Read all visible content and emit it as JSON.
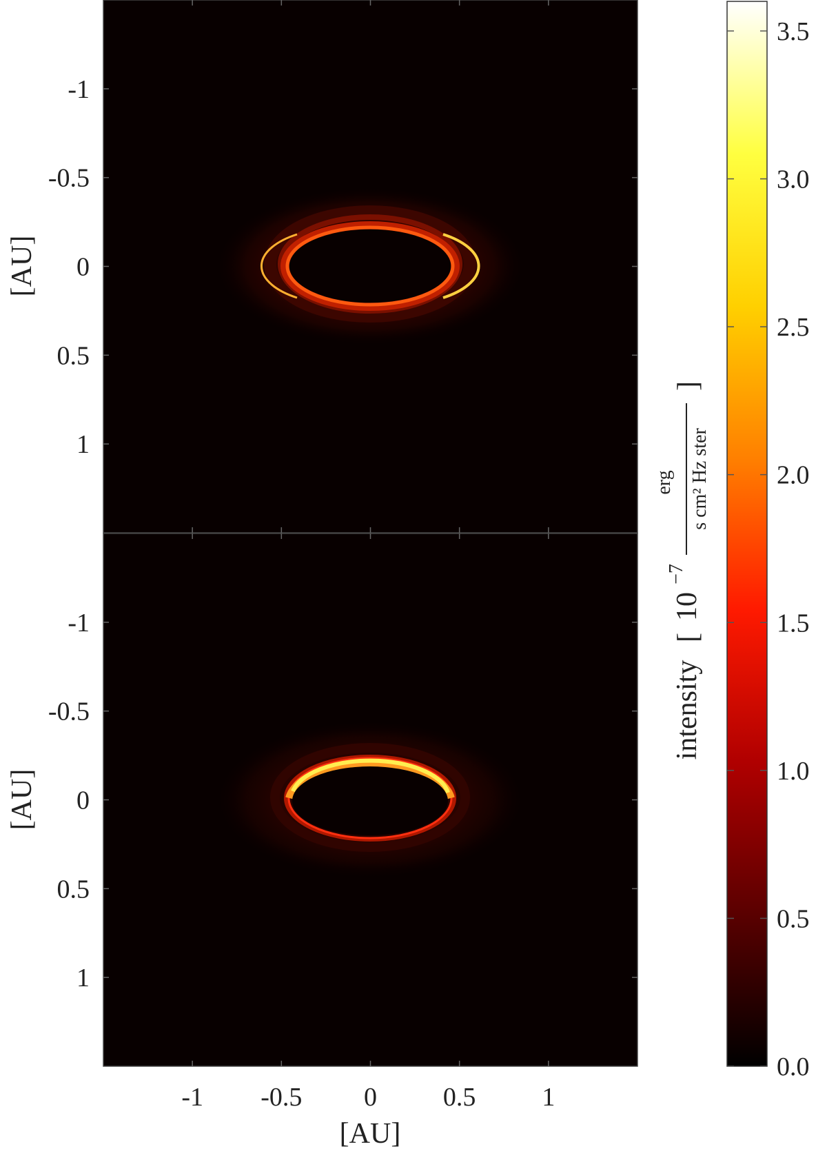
{
  "chart_data": {
    "type": "heatmap",
    "panels": [
      {
        "name": "top",
        "ylabel": "[AU]",
        "ylim": [
          1.5,
          -1.5
        ],
        "yticks": [
          -1,
          -0.5,
          0,
          0.5,
          1
        ],
        "ytick_labels": [
          "-1",
          "-0.5",
          "0",
          "0.5",
          "1"
        ],
        "ring": {
          "center": [
            0,
            0
          ],
          "inner_rx": 0.46,
          "inner_ry": 0.23,
          "outer_rx": 0.88,
          "outer_ry": 0.44,
          "peak_intensity": 2.2,
          "bright_side": "right"
        }
      },
      {
        "name": "bottom",
        "ylabel": "[AU]",
        "ylim": [
          1.5,
          -1.5
        ],
        "yticks": [
          -1,
          -0.5,
          0,
          0.5,
          1
        ],
        "ytick_labels": [
          "-1",
          "-0.5",
          "0",
          "0.5",
          "1"
        ],
        "ring": {
          "center": [
            0,
            0
          ],
          "inner_rx": 0.46,
          "inner_ry": 0.23,
          "outer_rx": 0.88,
          "outer_ry": 0.44,
          "peak_intensity": 3.0,
          "bright_side": "top"
        }
      }
    ],
    "xlabel": "[AU]",
    "xlim": [
      -1.5,
      1.5
    ],
    "xticks": [
      -1,
      -0.5,
      0,
      0.5,
      1
    ],
    "xtick_labels": [
      "-1",
      "-0.5",
      "0",
      "0.5",
      "1"
    ],
    "colorbar": {
      "label_word": "intensity",
      "label_power": "10",
      "label_exponent": "−7",
      "label_numerator": "erg",
      "label_denominator": "s cm² Hz ster",
      "range": [
        0.0,
        3.6
      ],
      "ticks": [
        0.0,
        0.5,
        1.0,
        1.5,
        2.0,
        2.5,
        3.0,
        3.5
      ],
      "tick_labels": [
        "0.0",
        "0.5",
        "1.0",
        "1.5",
        "2.0",
        "2.5",
        "3.0",
        "3.5"
      ],
      "colormap": "hot",
      "colormap_stops": [
        "#000000",
        "#5a0000",
        "#b00000",
        "#ff1a00",
        "#ff8000",
        "#ffd000",
        "#ffff40",
        "#ffffff"
      ]
    }
  }
}
